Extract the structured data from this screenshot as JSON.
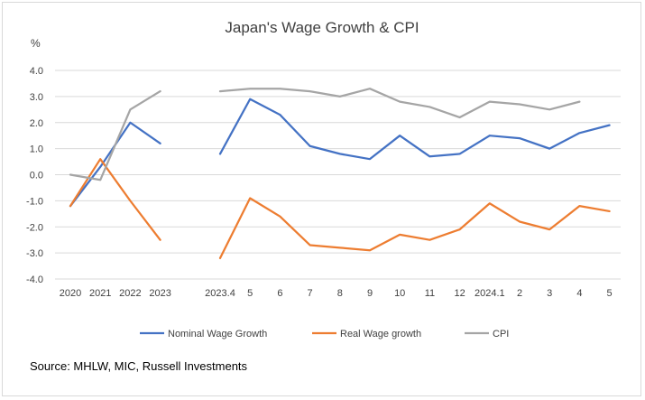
{
  "chart_data": {
    "type": "line",
    "title": "Japan's Wage Growth & CPI",
    "ylabel": "%",
    "xlabel": "",
    "ylim": [
      -4.0,
      4.0
    ],
    "ytick_labels": [
      "4.0",
      "3.0",
      "2.0",
      "1.0",
      "0.0",
      "-1.0",
      "-2.0",
      "-3.0",
      "-4.0"
    ],
    "ytick_values": [
      4,
      3,
      2,
      1,
      0,
      -1,
      -2,
      -3,
      -4
    ],
    "categories": [
      "2020",
      "2021",
      "2022",
      "2023",
      "",
      "2023.4",
      "5",
      "6",
      "7",
      "8",
      "9",
      "10",
      "11",
      "12",
      "2024.1",
      "2",
      "3",
      "4",
      "5"
    ],
    "series": [
      {
        "name": "Nominal Wage Growth",
        "color": "#4472c4",
        "values": [
          -1.2,
          0.3,
          2.0,
          1.2,
          null,
          0.8,
          2.9,
          2.3,
          1.1,
          0.8,
          0.6,
          1.5,
          0.7,
          0.8,
          1.5,
          1.4,
          1.0,
          1.6,
          1.9
        ]
      },
      {
        "name": "Real Wage growth",
        "color": "#ed7d31",
        "values": [
          -1.2,
          0.6,
          -1.0,
          -2.5,
          null,
          -3.2,
          -0.9,
          -1.6,
          -2.7,
          -2.8,
          -2.9,
          -2.3,
          -2.5,
          -2.1,
          -1.1,
          -1.8,
          -2.1,
          -1.2,
          -1.4
        ]
      },
      {
        "name": "CPI",
        "color": "#a5a5a5",
        "values": [
          0.0,
          -0.2,
          2.5,
          3.2,
          null,
          3.2,
          3.3,
          3.3,
          3.2,
          3.0,
          3.3,
          2.8,
          2.6,
          2.2,
          2.8,
          2.7,
          2.5,
          2.8,
          null
        ]
      }
    ],
    "legend_position": "bottom",
    "grid": true
  },
  "footer": {
    "source": "Source: MHLW, MIC, Russell Investments"
  }
}
